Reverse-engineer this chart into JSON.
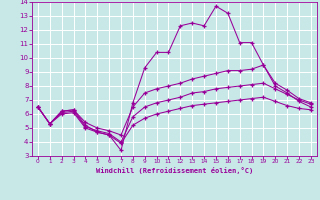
{
  "xlabel": "Windchill (Refroidissement éolien,°C)",
  "background_color": "#c8e8e8",
  "grid_color": "#ffffff",
  "line_color": "#990099",
  "xlim": [
    -0.5,
    23.5
  ],
  "ylim": [
    3,
    14
  ],
  "xticks": [
    0,
    1,
    2,
    3,
    4,
    5,
    6,
    7,
    8,
    9,
    10,
    11,
    12,
    13,
    14,
    15,
    16,
    17,
    18,
    19,
    20,
    21,
    22,
    23
  ],
  "yticks": [
    3,
    4,
    5,
    6,
    7,
    8,
    9,
    10,
    11,
    12,
    13,
    14
  ],
  "line1_x": [
    0,
    1,
    2,
    3,
    4,
    5,
    6,
    7,
    8,
    9,
    10,
    11,
    12,
    13,
    14,
    15,
    16,
    17,
    18,
    19,
    20,
    21,
    22,
    23
  ],
  "line1_y": [
    6.5,
    5.3,
    6.2,
    6.3,
    5.2,
    4.7,
    4.5,
    3.4,
    6.8,
    9.3,
    10.4,
    10.4,
    12.3,
    12.5,
    12.3,
    13.7,
    13.2,
    11.1,
    11.1,
    9.5,
    8.0,
    7.5,
    6.9,
    6.5
  ],
  "line2_x": [
    0,
    1,
    2,
    3,
    4,
    5,
    6,
    7,
    8,
    9,
    10,
    11,
    12,
    13,
    14,
    15,
    16,
    17,
    18,
    19,
    20,
    21,
    22,
    23
  ],
  "line2_y": [
    6.5,
    5.3,
    6.2,
    6.3,
    5.4,
    5.0,
    4.8,
    4.5,
    6.5,
    7.5,
    7.8,
    8.0,
    8.2,
    8.5,
    8.7,
    8.9,
    9.1,
    9.1,
    9.2,
    9.5,
    8.2,
    7.7,
    7.1,
    6.8
  ],
  "line3_x": [
    0,
    1,
    2,
    3,
    4,
    5,
    6,
    7,
    8,
    9,
    10,
    11,
    12,
    13,
    14,
    15,
    16,
    17,
    18,
    19,
    20,
    21,
    22,
    23
  ],
  "line3_y": [
    6.5,
    5.3,
    6.1,
    6.2,
    5.1,
    4.8,
    4.6,
    4.0,
    5.8,
    6.5,
    6.8,
    7.0,
    7.2,
    7.5,
    7.6,
    7.8,
    7.9,
    8.0,
    8.1,
    8.2,
    7.8,
    7.4,
    7.0,
    6.7
  ],
  "line4_x": [
    0,
    1,
    2,
    3,
    4,
    5,
    6,
    7,
    8,
    9,
    10,
    11,
    12,
    13,
    14,
    15,
    16,
    17,
    18,
    19,
    20,
    21,
    22,
    23
  ],
  "line4_y": [
    6.5,
    5.3,
    6.0,
    6.1,
    5.0,
    4.7,
    4.5,
    3.9,
    5.2,
    5.7,
    6.0,
    6.2,
    6.4,
    6.6,
    6.7,
    6.8,
    6.9,
    7.0,
    7.1,
    7.2,
    6.9,
    6.6,
    6.4,
    6.3
  ]
}
